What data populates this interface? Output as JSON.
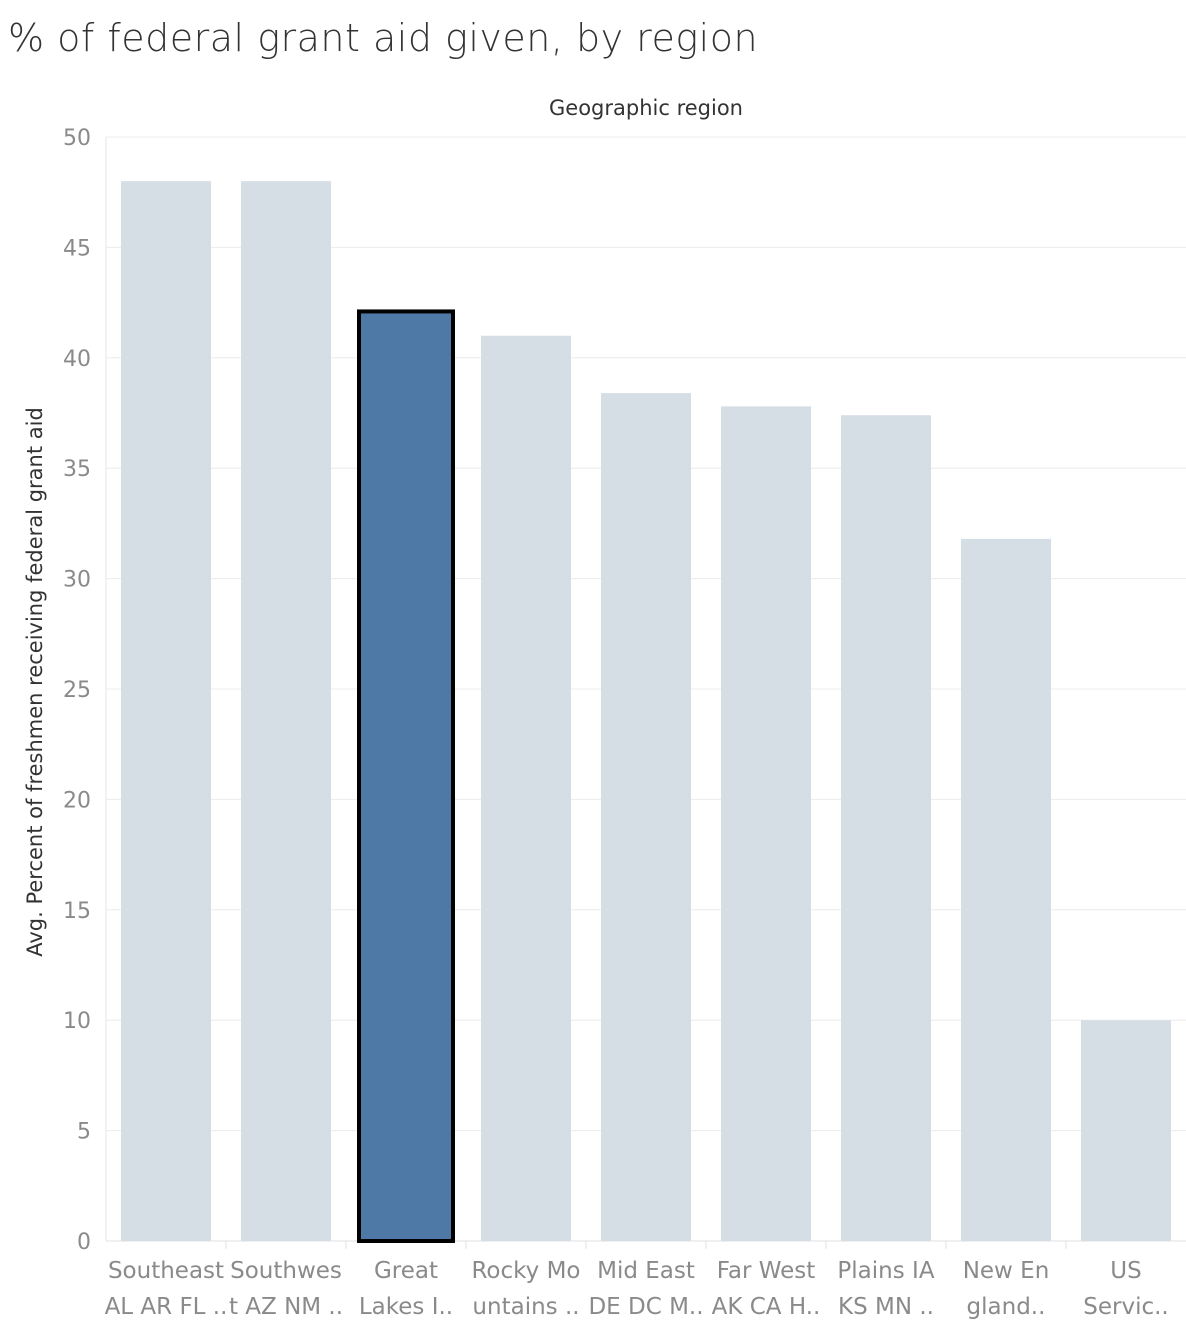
{
  "chart_data": {
    "type": "bar",
    "title": "% of federal grant aid given, by region",
    "header_label": "Geographic region",
    "ylabel": "Avg. Percent of freshmen  receiving federal grant aid",
    "xlabel": "",
    "ylim": [
      0,
      50
    ],
    "yticks": [
      0,
      5,
      10,
      15,
      20,
      25,
      30,
      35,
      40,
      45,
      50
    ],
    "grid": true,
    "categories": [
      [
        "Southeast",
        "AL AR FL .."
      ],
      [
        "Southwes",
        "t AZ NM .."
      ],
      [
        "Great",
        "Lakes I.."
      ],
      [
        "Rocky Mo",
        "untains .."
      ],
      [
        "Mid East",
        "DE DC M.."
      ],
      [
        "Far West",
        "AK CA H.."
      ],
      [
        "Plains IA",
        "KS MN .."
      ],
      [
        "New En",
        "gland.."
      ],
      [
        "US",
        "Servic.."
      ]
    ],
    "values": [
      48.0,
      48.0,
      42.1,
      41.0,
      38.4,
      37.8,
      37.4,
      31.8,
      10.0
    ],
    "highlighted_index": 2,
    "colors": {
      "bar": "#d5dde5",
      "highlight": "#4e79a7",
      "highlight_border": "#000000",
      "grid": "#ececec",
      "text": "#333333",
      "tick": "#8a8a8a"
    }
  }
}
